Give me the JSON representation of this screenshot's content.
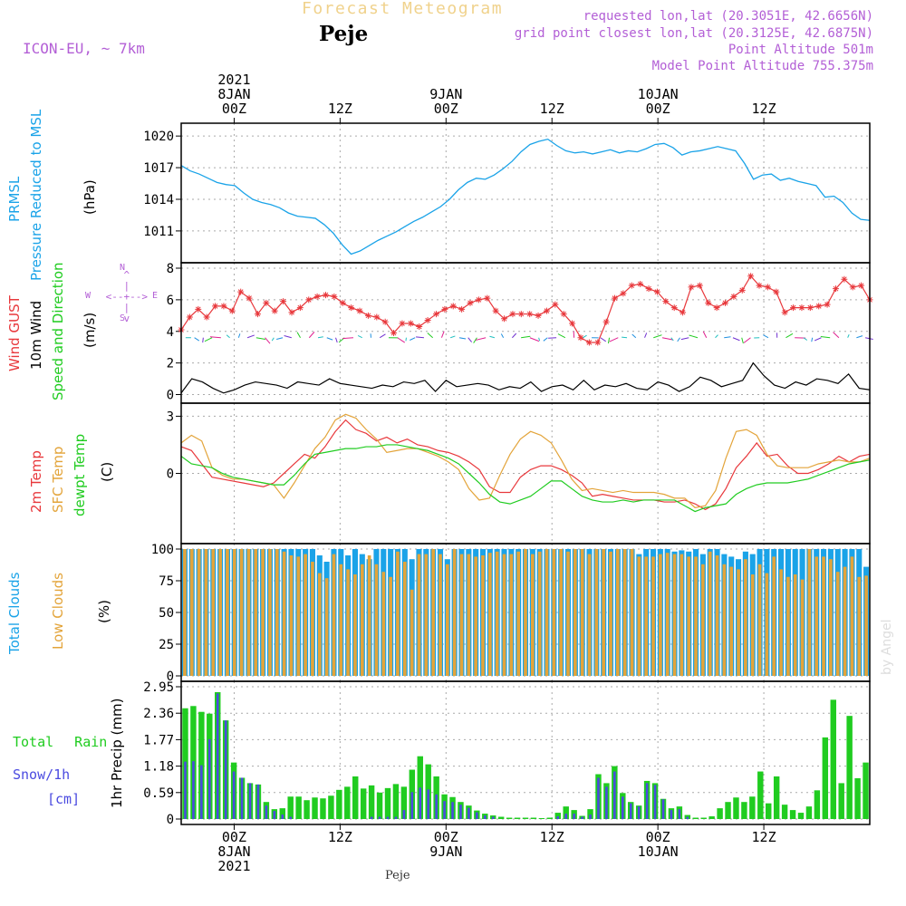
{
  "header": {
    "title": "Forecast Meteogram",
    "location": "Peje",
    "model": "ICON-EU, ~ 7km",
    "requested": "requested lon,lat (20.3051E, 42.6656N)",
    "grid_point": "grid point closest lon,lat (20.3125E, 42.6875N)",
    "point_altitude": "Point Altitude 501m",
    "model_altitude": "Model Point Altitude 755.375m",
    "footer_location": "Peje",
    "credit": "by Angel"
  },
  "colors": {
    "pressure": "#1aa3e8",
    "gust": "#e8383c",
    "wind10m": "#000000",
    "t2m": "#e8383c",
    "sfc": "#e3a43a",
    "dew": "#20cc20",
    "total_cloud": "#1aa3e8",
    "low_cloud": "#e3a43a",
    "rain": "#20cc20",
    "snow": "#4a4ae0",
    "label_purple": "#b35fd6"
  },
  "time_axis": {
    "top": [
      {
        "t": 6,
        "lines": [
          "2021",
          "8JAN",
          "00Z"
        ]
      },
      {
        "t": 18,
        "lines": [
          "12Z"
        ]
      },
      {
        "t": 30,
        "lines": [
          "9JAN",
          "00Z"
        ]
      },
      {
        "t": 42,
        "lines": [
          "12Z"
        ]
      },
      {
        "t": 54,
        "lines": [
          "10JAN",
          "00Z"
        ]
      },
      {
        "t": 66,
        "lines": [
          "12Z"
        ]
      }
    ],
    "bottom": [
      {
        "t": 6,
        "lines": [
          "00Z",
          "8JAN",
          "2021"
        ]
      },
      {
        "t": 18,
        "lines": [
          "12Z"
        ]
      },
      {
        "t": 30,
        "lines": [
          "00Z",
          "9JAN"
        ]
      },
      {
        "t": 42,
        "lines": [
          "12Z"
        ]
      },
      {
        "t": 54,
        "lines": [
          "00Z",
          "10JAN"
        ]
      },
      {
        "t": 66,
        "lines": [
          "12Z"
        ]
      }
    ]
  },
  "panel_labels": {
    "pressure": {
      "line1": "PRMSL",
      "line2": "Pressure Reduced to MSL",
      "unit": "(hPa)"
    },
    "wind": {
      "gust": "Wind GUST",
      "wind10": "10m Wind",
      "speed_dir": "Speed and Direction",
      "unit": "(m/s)",
      "compass": [
        "N",
        "S",
        "W",
        "E"
      ]
    },
    "temp": {
      "t2m": "2m Temp",
      "sfc": "SFC Temp",
      "dew": "dewpt Temp",
      "unit": "(C)"
    },
    "cloud": {
      "total": "Total Clouds",
      "low": "Low Clouds",
      "unit": "(%)"
    },
    "precip": {
      "rain": "Total Rain",
      "snow": "Snow/1h",
      "snow_unit": "[cm]",
      "axis": "1hr Precip (mm)"
    }
  },
  "chart_data": [
    {
      "type": "line",
      "name": "pressure",
      "ylim": [
        1008.5,
        1020.7
      ],
      "yticks": [
        1011,
        1014,
        1017,
        1020
      ],
      "series": [
        {
          "name": "PRMSL",
          "values": [
            1017.2,
            1016.7,
            1016.4,
            1016.0,
            1015.6,
            1015.4,
            1015.3,
            1014.6,
            1014.0,
            1013.7,
            1013.5,
            1013.2,
            1012.7,
            1012.4,
            1012.3,
            1012.2,
            1011.6,
            1010.8,
            1009.7,
            1008.8,
            1009.1,
            1009.6,
            1010.1,
            1010.5,
            1010.9,
            1011.4,
            1011.9,
            1012.3,
            1012.8,
            1013.3,
            1014.0,
            1014.9,
            1015.6,
            1016.0,
            1015.9,
            1016.3,
            1016.9,
            1017.6,
            1018.5,
            1019.2,
            1019.5,
            1019.7,
            1019.1,
            1018.6,
            1018.4,
            1018.5,
            1018.3,
            1018.5,
            1018.7,
            1018.4,
            1018.6,
            1018.5,
            1018.8,
            1019.2,
            1019.3,
            1018.9,
            1018.2,
            1018.5,
            1018.6,
            1018.8,
            1019.0,
            1018.8,
            1018.6,
            1017.4,
            1015.9,
            1016.3,
            1016.4,
            1015.8,
            1016.0,
            1015.7,
            1015.5,
            1015.3,
            1014.2,
            1014.3,
            1013.7,
            1012.7,
            1012.1,
            1012.0
          ]
        }
      ]
    },
    {
      "type": "line",
      "name": "wind",
      "ylim": [
        -0.2,
        8
      ],
      "yticks": [
        0,
        2,
        4,
        6,
        8
      ],
      "series": [
        {
          "name": "Wind GUST",
          "values": [
            4.1,
            4.9,
            5.4,
            4.9,
            5.6,
            5.6,
            5.3,
            6.5,
            6.1,
            5.1,
            5.8,
            5.3,
            5.9,
            5.2,
            5.5,
            6.0,
            6.2,
            6.3,
            6.2,
            5.8,
            5.5,
            5.3,
            5.0,
            4.9,
            4.6,
            3.9,
            4.5,
            4.5,
            4.3,
            4.7,
            5.1,
            5.4,
            5.6,
            5.4,
            5.8,
            6.0,
            6.1,
            5.3,
            4.8,
            5.1,
            5.1,
            5.1,
            5.0,
            5.3,
            5.7,
            5.1,
            4.5,
            3.6,
            3.3,
            3.3,
            4.6,
            6.1,
            6.4,
            6.9,
            7.0,
            6.7,
            6.5,
            5.9,
            5.5,
            5.2,
            6.8,
            6.9,
            5.8,
            5.5,
            5.8,
            6.2,
            6.6,
            7.5,
            6.9,
            6.8,
            6.5,
            5.2,
            5.5,
            5.5,
            5.5,
            5.6,
            5.7,
            6.7,
            7.3,
            6.8,
            6.9,
            6.0
          ]
        },
        {
          "name": "10m Wind",
          "values": [
            0.1,
            1.0,
            0.8,
            0.4,
            0.1,
            0.3,
            0.6,
            0.8,
            0.7,
            0.6,
            0.4,
            0.8,
            0.7,
            0.6,
            1.0,
            0.7,
            0.6,
            0.5,
            0.4,
            0.6,
            0.5,
            0.8,
            0.7,
            0.9,
            0.2,
            0.9,
            0.5,
            0.6,
            0.7,
            0.6,
            0.3,
            0.5,
            0.4,
            0.8,
            0.2,
            0.5,
            0.6,
            0.3,
            0.9,
            0.3,
            0.6,
            0.5,
            0.7,
            0.4,
            0.3,
            0.8,
            0.6,
            0.2,
            0.5,
            1.1,
            0.9,
            0.5,
            0.7,
            0.9,
            2.0,
            1.2,
            0.6,
            0.4,
            0.8,
            0.6,
            1.0,
            0.9,
            0.7,
            1.3,
            0.4,
            0.3
          ]
        }
      ]
    },
    {
      "type": "line",
      "name": "temperature",
      "ylim": [
        -3.4,
        3.4
      ],
      "yticks": [
        0,
        3
      ],
      "series": [
        {
          "name": "2m Temp",
          "values": [
            1.4,
            1.2,
            0.5,
            -0.2,
            -0.3,
            -0.4,
            -0.5,
            -0.6,
            -0.7,
            -0.5,
            0.0,
            0.5,
            1.0,
            0.8,
            1.4,
            2.2,
            2.8,
            2.3,
            2.1,
            1.7,
            1.9,
            1.6,
            1.8,
            1.5,
            1.4,
            1.2,
            1.1,
            0.9,
            0.6,
            0.2,
            -0.7,
            -1.0,
            -1.0,
            -0.2,
            0.2,
            0.4,
            0.4,
            0.2,
            -0.1,
            -0.5,
            -1.2,
            -1.1,
            -1.2,
            -1.3,
            -1.4,
            -1.4,
            -1.4,
            -1.5,
            -1.5,
            -1.4,
            -1.6,
            -1.9,
            -1.6,
            -0.8,
            0.3,
            0.9,
            1.6,
            0.9,
            1.0,
            0.4,
            0.0,
            0.0,
            0.2,
            0.5,
            0.9,
            0.6,
            0.9,
            1.0
          ]
        },
        {
          "name": "SFC Temp",
          "values": [
            1.6,
            2.0,
            1.7,
            0.3,
            -0.1,
            -0.3,
            -0.3,
            -0.4,
            -0.5,
            -0.6,
            -1.3,
            -0.5,
            0.4,
            1.3,
            1.9,
            2.8,
            3.1,
            2.9,
            2.3,
            1.8,
            1.1,
            1.2,
            1.3,
            1.3,
            1.1,
            0.9,
            0.6,
            0.2,
            -0.8,
            -1.4,
            -1.3,
            -0.1,
            1.0,
            1.8,
            2.2,
            2.0,
            1.6,
            0.7,
            -0.3,
            -0.9,
            -0.8,
            -0.9,
            -1.0,
            -0.9,
            -1.0,
            -1.0,
            -1.0,
            -1.1,
            -1.3,
            -1.3,
            -1.8,
            -1.7,
            -0.9,
            0.8,
            2.2,
            2.3,
            2.0,
            1.0,
            0.4,
            0.3,
            0.3,
            0.3,
            0.5,
            0.6,
            0.7,
            0.6,
            0.6,
            0.8
          ]
        },
        {
          "name": "dewpt Temp",
          "values": [
            0.9,
            0.5,
            0.4,
            0.3,
            0.0,
            -0.2,
            -0.3,
            -0.4,
            -0.5,
            -0.6,
            -0.6,
            -0.1,
            0.5,
            1.0,
            1.1,
            1.2,
            1.3,
            1.3,
            1.4,
            1.4,
            1.5,
            1.5,
            1.4,
            1.3,
            1.2,
            1.0,
            0.8,
            0.5,
            0.0,
            -0.5,
            -1.1,
            -1.5,
            -1.6,
            -1.4,
            -1.2,
            -0.8,
            -0.4,
            -0.4,
            -0.8,
            -1.2,
            -1.4,
            -1.5,
            -1.5,
            -1.4,
            -1.5,
            -1.4,
            -1.4,
            -1.4,
            -1.4,
            -1.7,
            -2.0,
            -1.8,
            -1.7,
            -1.6,
            -1.1,
            -0.8,
            -0.6,
            -0.5,
            -0.5,
            -0.5,
            -0.4,
            -0.3,
            -0.1,
            0.1,
            0.3,
            0.5,
            0.6,
            0.7
          ]
        }
      ]
    },
    {
      "type": "bar",
      "name": "clouds",
      "ylim": [
        0,
        100
      ],
      "yticks": [
        0,
        25,
        50,
        75,
        100
      ],
      "series": [
        {
          "name": "Total Clouds",
          "values": [
            100,
            100,
            100,
            100,
            100,
            100,
            100,
            100,
            100,
            100,
            100,
            100,
            100,
            100,
            100,
            100,
            100,
            100,
            100,
            95,
            90,
            100,
            100,
            95,
            100,
            96,
            92,
            100,
            100,
            100,
            100,
            100,
            92,
            100,
            100,
            100,
            100,
            92,
            100,
            100,
            100,
            100,
            100,
            100,
            100,
            100,
            100,
            100,
            100,
            100,
            100,
            100,
            100,
            100,
            100,
            100,
            100,
            100,
            100,
            100,
            100,
            100,
            100,
            100,
            96,
            100,
            100,
            100,
            100,
            98,
            99,
            98,
            100,
            96,
            100,
            100,
            96,
            94,
            92,
            98,
            96,
            100,
            100,
            100,
            100,
            100,
            100,
            100,
            100,
            100,
            100,
            100,
            100,
            100,
            100,
            100,
            86
          ]
        },
        {
          "name": "Low Clouds",
          "values": [
            100,
            100,
            100,
            100,
            100,
            100,
            100,
            100,
            100,
            100,
            100,
            100,
            100,
            100,
            98,
            95,
            94,
            96,
            90,
            81,
            77,
            96,
            88,
            84,
            80,
            88,
            95,
            88,
            82,
            78,
            98,
            90,
            68,
            96,
            96,
            100,
            96,
            88,
            100,
            96,
            96,
            94,
            95,
            97,
            98,
            96,
            96,
            98,
            100,
            96,
            98,
            100,
            100,
            100,
            98,
            100,
            100,
            96,
            100,
            100,
            98,
            100,
            100,
            100,
            94,
            94,
            94,
            96,
            97,
            96,
            96,
            94,
            94,
            88,
            98,
            95,
            88,
            86,
            84,
            92,
            80,
            88,
            81,
            94,
            84,
            78,
            80,
            76,
            100,
            94,
            94,
            92,
            82,
            86,
            94,
            78,
            79
          ]
        }
      ]
    },
    {
      "type": "bar",
      "name": "precipitation",
      "ylim": [
        0,
        2.95
      ],
      "yticks": [
        0,
        0.59,
        1.18,
        1.77,
        2.36,
        2.95
      ],
      "series": [
        {
          "name": "Total Rain",
          "values": [
            2.47,
            2.52,
            2.39,
            2.35,
            2.83,
            2.2,
            1.26,
            0.92,
            0.8,
            0.77,
            0.38,
            0.22,
            0.24,
            0.5,
            0.5,
            0.42,
            0.48,
            0.46,
            0.52,
            0.65,
            0.72,
            0.95,
            0.68,
            0.75,
            0.59,
            0.69,
            0.78,
            0.72,
            1.1,
            1.4,
            1.22,
            0.95,
            0.55,
            0.49,
            0.38,
            0.3,
            0.19,
            0.12,
            0.08,
            0.05,
            0.03,
            0.03,
            0.03,
            0.03,
            0.02,
            0.03,
            0.14,
            0.28,
            0.2,
            0.07,
            0.22,
            1.0,
            0.8,
            1.18,
            0.58,
            0.38,
            0.3,
            0.85,
            0.8,
            0.45,
            0.24,
            0.28,
            0.09,
            0.03,
            0.03,
            0.06,
            0.24,
            0.38,
            0.48,
            0.38,
            0.5,
            1.06,
            0.35,
            0.95,
            0.32,
            0.2,
            0.14,
            0.28,
            0.64,
            1.82,
            2.66,
            0.8,
            2.3,
            0.91,
            1.26
          ]
        },
        {
          "name": "Snow/1h",
          "values": [
            1.28,
            1.29,
            1.2,
            1.78,
            2.8,
            2.2,
            1.06,
            0.92,
            0.8,
            0.77,
            0.3,
            0.18,
            0.1,
            0.05,
            0.03,
            0.02,
            0.02,
            0.02,
            0.02,
            0.02,
            0.02,
            0.02,
            0.02,
            0.05,
            0.05,
            0.05,
            0.05,
            0.2,
            0.6,
            0.7,
            0.66,
            0.55,
            0.4,
            0.38,
            0.32,
            0.25,
            0.15,
            0.08,
            0.05,
            0.03,
            0.02,
            0.02,
            0.02,
            0.02,
            0.02,
            0.02,
            0.06,
            0.12,
            0.12,
            0.05,
            0.1,
            0.92,
            0.72,
            1.06,
            0.5,
            0.35,
            0.28,
            0.8,
            0.76,
            0.44,
            0.2,
            0.22,
            0.05,
            0.02,
            0.02,
            0.02,
            0.02,
            0.02,
            0.02,
            0.02,
            0.02,
            0.02,
            0.02,
            0.02,
            0.02,
            0.02,
            0.02,
            0.02,
            0.02,
            0.02,
            0.02,
            0.02,
            0.02,
            0.02,
            0.02
          ]
        }
      ]
    }
  ]
}
